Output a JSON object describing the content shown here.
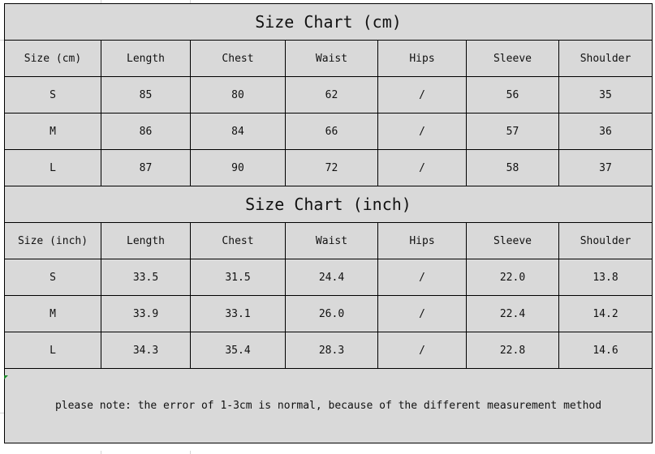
{
  "cm_table": {
    "title": "Size Chart (cm)",
    "headers": [
      "Size (cm)",
      "Length",
      "Chest",
      "Waist",
      "Hips",
      "Sleeve",
      "Shoulder"
    ],
    "rows": [
      [
        "S",
        "85",
        "80",
        "62",
        "/",
        "56",
        "35"
      ],
      [
        "M",
        "86",
        "84",
        "66",
        "/",
        "57",
        "36"
      ],
      [
        "L",
        "87",
        "90",
        "72",
        "/",
        "58",
        "37"
      ]
    ]
  },
  "inch_table": {
    "title": "Size Chart (inch)",
    "headers": [
      "Size (inch)",
      "Length",
      "Chest",
      "Waist",
      "Hips",
      "Sleeve",
      "Shoulder"
    ],
    "rows": [
      [
        "S",
        "33.5",
        "31.5",
        "24.4",
        "/",
        "22.0",
        "13.8"
      ],
      [
        "M",
        "33.9",
        "33.1",
        "26.0",
        "/",
        "22.4",
        "14.2"
      ],
      [
        "L",
        "34.3",
        "35.4",
        "28.3",
        "/",
        "22.8",
        "14.6"
      ]
    ]
  },
  "note": "please note: the error of 1-3cm is normal, because of the different measurement method",
  "colors": {
    "cell_background": "#d9d9d9",
    "border": "#000000"
  }
}
